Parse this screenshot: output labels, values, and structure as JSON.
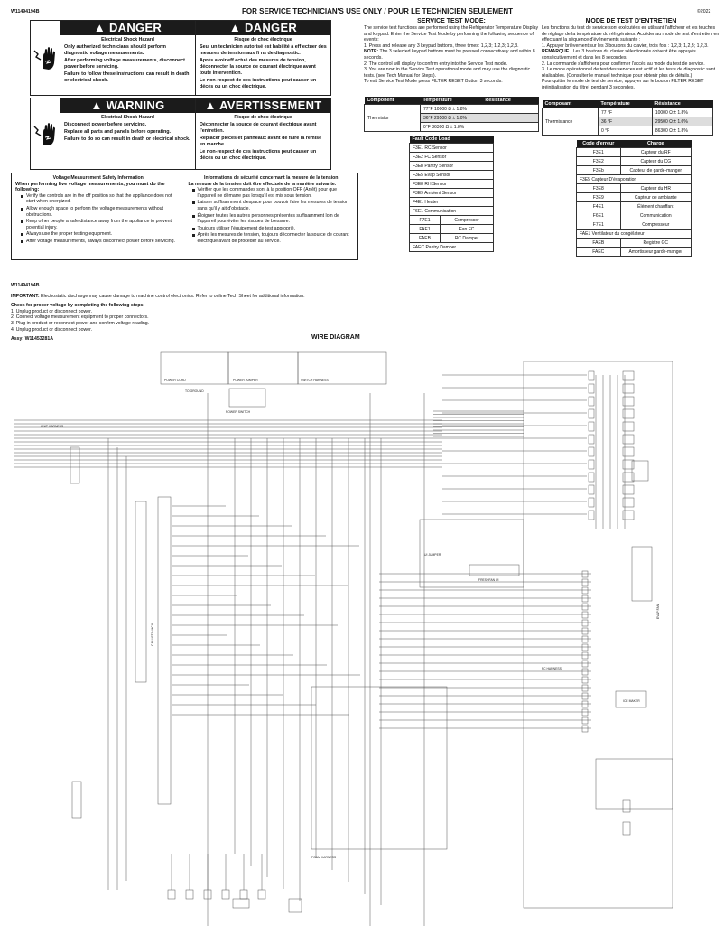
{
  "header": {
    "doc_number": "W11494194B",
    "title": "FOR SERVICE TECHNICIAN'S USE ONLY / POUR LE TECHNICIEN SEULEMENT",
    "copyright": "©2022"
  },
  "danger": {
    "en_title": "DANGER",
    "fr_title": "DANGER",
    "en_sub": "Electrical Shock Hazard",
    "fr_sub": "Risque de choc électrique",
    "en_lines": [
      "Only authorized technicians should perform diagnostic voltage measurements.",
      "After performing voltage measurements, disconnect power before servicing.",
      "Failure to follow these instructions can result in death or electrical shock."
    ],
    "fr_lines": [
      "Seul un technicien autorisé est habilité à eff ectuer des mesures de tension aux fi ns de diagnostic.",
      "Après avoir eff ectué des mesures de tension, déconnecter la source de courant électrique avant toute intervention.",
      "Le non-respect de ces instructions peut causer un décès ou un choc électrique."
    ]
  },
  "warning": {
    "en_title": "WARNING",
    "fr_title": "AVERTISSEMENT",
    "en_sub": "Electrical Shock Hazard",
    "fr_sub": "Risque de choc électrique",
    "en_lines": [
      "Disconnect power before servicing.",
      "Replace all parts and panels before operating.",
      "Failure to do so can result in death or electrical shock."
    ],
    "fr_lines": [
      "Déconnecter la source de courant électrique avant l'entretien.",
      "Replacer pièces et panneaux avant de faire la remise en marche.",
      "Le non-respect de ces instructions peut causer un décès ou un choc électrique."
    ]
  },
  "voltage_safety": {
    "en_title": "Voltage Measurement Safety Information",
    "en_intro": "When performing live voltage measurements, you must do the following:",
    "en_items": [
      "Verify the controls are in the off position so that the appliance does not start when energized.",
      "Allow enough space to perform the voltage measurements without obstructions.",
      "Keep other people a safe distance away from the appliance to prevent potential injury.",
      "Always use the proper testing equipment.",
      "After voltage measurements, always disconnect power before servicing."
    ],
    "fr_title": "Informations de sécurité concernant la mesure de la tension",
    "fr_intro": "La mesure de la tension doit être effectuée de la manière suivante:",
    "fr_items": [
      "Vérifier que les commandes sont à la position OFF (Arrêt) pour que l'appareil ne démarre pas lorsqu'il est mis sous tension.",
      "Laisser suffisamment d'espace pour pouvoir faire les mesures de tension sans qu'il y ait d'obstacle.",
      "Éloigner toutes les autres personnes présentes suffisamment loin de l'appareil pour éviter les risques de blessure.",
      "Toujours utiliser l'équipement de test approprié.",
      "Après les mesures de tension, toujours déconnecter la source de courant électrique avant de procéder au service."
    ]
  },
  "service_test_en": {
    "title": "SERVICE TEST MODE:",
    "intro": "The service test functions are performed using the Refrigerator Temperature Display and keypad. Enter the Service Test Mode by performing the following sequence of events:",
    "step1": "1. Press and release any 3 keypad buttons, three times: 1,2,3; 1,2,3; 1,2,3.",
    "note_label": "NOTE:",
    "note": " The 3 selected keypad buttons must be pressed consecutively and within 8 seconds.",
    "step2": "2. The control will display to confirm entry into the Service Test mode.",
    "step3": "3. You are now in the Service Test operational mode and may use the diagnostic tests. (see Tech Manual for Steps).",
    "exit": "To exit Service Test Mode press FILTER RESET Button 3 seconds."
  },
  "service_test_fr": {
    "title": "MODE DE TEST D'ENTRETIEN",
    "intro": "Les fonctions du test de service sont exécutées en utilisant l'afficheur et les touches de réglage de la température du réfrigérateur. Accéder au mode de test d'entretien en effectuant la séquence d'événements suivante :",
    "step1": "1.  Appuyer brièvement sur les 3 boutons du clavier, trois fois : 1,2,3; 1,2,3; 1,2,3.",
    "note_label": "REMARQUE",
    "note": " : Les 3 boutons du clavier sélectionnés doivent être appuyés consécutivement et dans les 8 secondes.",
    "step2": "2. La commande s'affichera pour confirmer l'accès au mode du test de service.",
    "step3": "3. Le mode opérationnel de test des services est actif et les tests de diagnostic sont réalisables. (Consulter le manuel technique pour obtenir plus de détails.)",
    "exit": "Pour quitter le mode de test de service, appuyer sur le bouton FILTER RESET (réinitialisation du filtre) pendant 3 secondes."
  },
  "thermistor_en": {
    "headers": [
      "Component",
      "Temperature",
      "Resistance"
    ],
    "component": "Thermistor",
    "rows": [
      "77°F 10000 Ω ± 1.8%",
      "36°F 29500 Ω ± 1.0%",
      "0°F 86300 Ω ± 1.8%"
    ]
  },
  "thermistor_fr": {
    "headers": [
      "Composant",
      "Température",
      "Résistance"
    ],
    "component": "Thermistance",
    "rows": [
      [
        "77 °F",
        "10000 Ω ± 1.8%"
      ],
      [
        "36 °F",
        "29500 Ω ± 1.0%"
      ],
      [
        "0 °F",
        "86300 Ω ± 1.8%"
      ]
    ]
  },
  "fault_en": {
    "header": "Fault Code Load",
    "rows": [
      [
        "F3E1 RC Sensor",
        ""
      ],
      [
        "F3E2 FC Sensor",
        ""
      ],
      [
        "F3Eb Pantry Sensor",
        ""
      ],
      [
        "F3E5 Evap Sensor",
        ""
      ],
      [
        "F3E8 RH Sensor",
        ""
      ],
      [
        "F3E9 Ambient Sensor",
        ""
      ],
      [
        "F4E1 Heater",
        ""
      ],
      [
        "F6E1 Communication",
        ""
      ],
      [
        "F7E1",
        "Compressor"
      ],
      [
        "FAE1",
        "Fan FC"
      ],
      [
        "FAEB",
        "RC Damper"
      ],
      [
        "FAEC Pantry Damper",
        ""
      ]
    ]
  },
  "fault_fr": {
    "headers": [
      "Code d'erreur",
      "Charge"
    ],
    "rows": [
      [
        "F3E1",
        "Capteur du RF"
      ],
      [
        "F3E2",
        "Capteur du CG"
      ],
      [
        "F3Eb",
        "Capteur de garde-manger"
      ],
      [
        "F3E5 Capteur D'évaporation",
        ""
      ],
      [
        "F3E8",
        "Capteur du HR"
      ],
      [
        "F3E9",
        "Capteur de ambiante"
      ],
      [
        "F4E1",
        "Élément chauffant"
      ],
      [
        "F6E1",
        "Communication"
      ],
      [
        "F7E1",
        "Compresseur"
      ],
      [
        "FAE1 Ventilateur du congélateur",
        ""
      ],
      [
        "FAEB",
        "Registre GC"
      ],
      [
        "FAEC",
        "Amortisseur garde-manger"
      ]
    ]
  },
  "section2": {
    "doc_number": "W11494194B",
    "important_label": "IMPORTANT:",
    "important": " Electrostatic discharge may cause damage to machine control electronics. Refer to online Tech Sheet for additional information.",
    "check_title": "Check for proper voltage by completing the following steps:",
    "steps": [
      "1. Unplug product or disconnect power.",
      "2. Connect voltage measurement equipment to proper connectors.",
      "3. Plug in product or reconnect power and confirm voltage reading.",
      "4. Unplug product or disconnect power."
    ],
    "assy": "Assy: W11453281A"
  },
  "wire_diagram": {
    "title": "WIRE DIAGRAM",
    "labels": {
      "power_cord": "POWER CORD",
      "power_jumper": "POWER JUMPER",
      "switch_harness": "SWITCH HARNESS",
      "power_switch": "POWER SWITCH",
      "to_ground": "TO GROUND",
      "unit_harness": "UNIT HARNESS",
      "mcu": "CALLISTO-MCU",
      "ui_jumper": "UI JUMPER",
      "freshfan_ui": "FRESHFAN UI",
      "fc_harness": "FC HARNESS",
      "foam_harness": "FOAM HARNESS",
      "ice_maker": "ICE MAKER",
      "evap_fan": "EVAP FAN"
    }
  }
}
